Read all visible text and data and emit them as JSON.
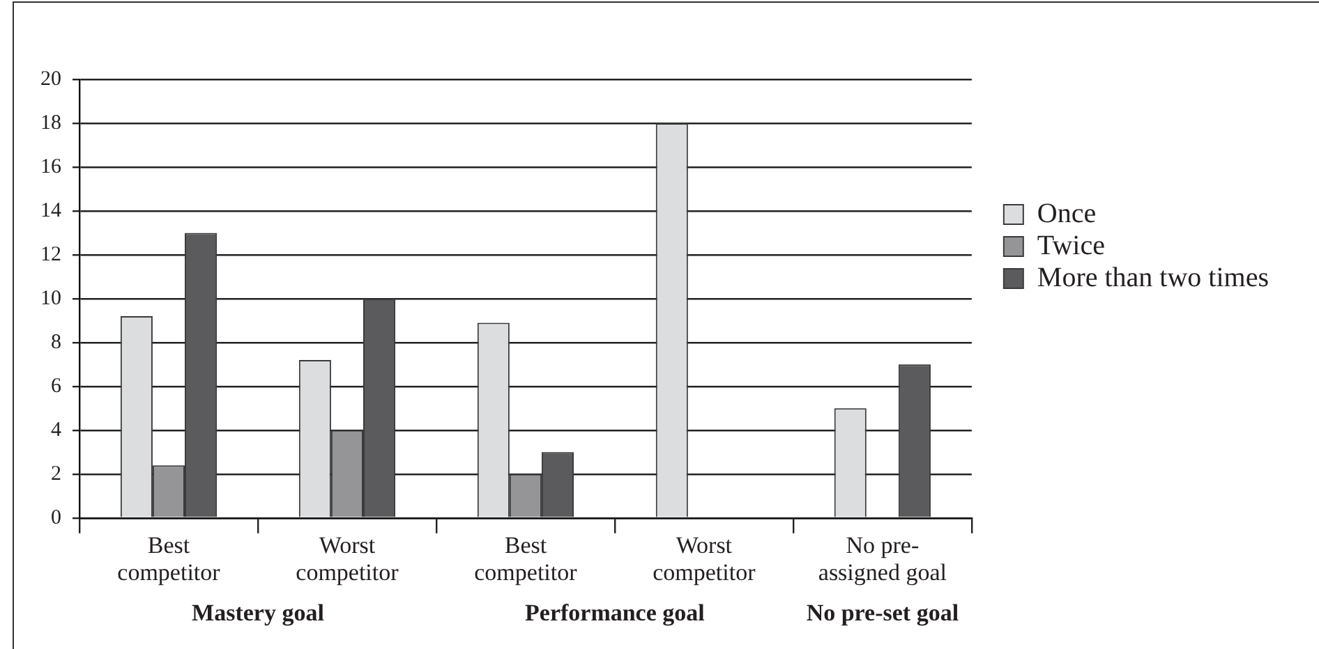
{
  "chart_data": {
    "type": "bar",
    "categories": [
      "Best competitor",
      "Worst competitor",
      "Best competitor",
      "Worst competitor",
      "No pre-assigned goal"
    ],
    "series": [
      {
        "name": "Once",
        "color": "#dcdddf",
        "values": [
          9.2,
          7.2,
          8.9,
          18,
          5
        ]
      },
      {
        "name": "Twice",
        "color": "#959597",
        "values": [
          2.4,
          4,
          2,
          null,
          null
        ]
      },
      {
        "name": "More than two times",
        "color": "#5b5b5d",
        "values": [
          13,
          10,
          3,
          null,
          7
        ]
      }
    ],
    "ylim": [
      0,
      20
    ],
    "yticks": [
      0,
      2,
      4,
      6,
      8,
      10,
      12,
      14,
      16,
      18,
      20
    ],
    "grid": "y",
    "legend": "right",
    "annotations": [
      "Mastery goal",
      "Performance goal",
      "No pre-set goal"
    ]
  }
}
